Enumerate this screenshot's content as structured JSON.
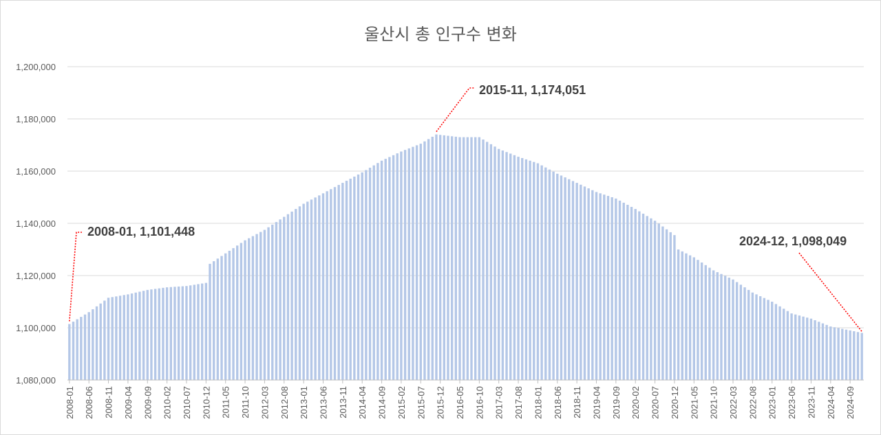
{
  "chart_data": {
    "type": "bar",
    "title": "울산시 총 인구수 변화",
    "xlabel": "",
    "ylabel": "",
    "ylim": [
      1080000,
      1200000
    ],
    "yticks": [
      "1,080,000",
      "1,100,000",
      "1,120,000",
      "1,140,000",
      "1,160,000",
      "1,180,000",
      "1,200,000"
    ],
    "ytick_values": [
      1080000,
      1100000,
      1120000,
      1140000,
      1160000,
      1180000,
      1200000
    ],
    "start_month": "2008-01",
    "end_month": "2024-12",
    "xtick_labels": [
      "2008-01",
      "2008-06",
      "2008-11",
      "2009-04",
      "2009-09",
      "2010-02",
      "2010-07",
      "2010-12",
      "2011-05",
      "2011-10",
      "2012-03",
      "2012-08",
      "2013-01",
      "2013-06",
      "2013-11",
      "2014-04",
      "2014-09",
      "2015-02",
      "2015-07",
      "2015-12",
      "2016-05",
      "2016-10",
      "2017-03",
      "2017-08",
      "2018-01",
      "2018-06",
      "2018-11",
      "2019-04",
      "2019-09",
      "2020-02",
      "2020-07",
      "2020-12",
      "2021-05",
      "2021-10",
      "2022-03",
      "2022-08",
      "2023-01",
      "2023-06",
      "2023-11",
      "2024-04",
      "2024-09"
    ],
    "anchors": [
      [
        "2008-01",
        1101448
      ],
      [
        "2008-06",
        1106000
      ],
      [
        "2008-11",
        1111500
      ],
      [
        "2009-04",
        1112800
      ],
      [
        "2009-09",
        1114500
      ],
      [
        "2010-02",
        1115500
      ],
      [
        "2010-07",
        1116000
      ],
      [
        "2010-12",
        1117200
      ],
      [
        "2011-01",
        1124500
      ],
      [
        "2011-05",
        1128500
      ],
      [
        "2011-10",
        1133500
      ],
      [
        "2012-03",
        1137500
      ],
      [
        "2012-08",
        1142500
      ],
      [
        "2013-01",
        1147500
      ],
      [
        "2013-06",
        1151500
      ],
      [
        "2013-11",
        1155500
      ],
      [
        "2014-04",
        1159500
      ],
      [
        "2014-09",
        1164000
      ],
      [
        "2015-02",
        1167500
      ],
      [
        "2015-07",
        1170500
      ],
      [
        "2015-11",
        1174051
      ],
      [
        "2016-05",
        1173000
      ],
      [
        "2016-10",
        1173000
      ],
      [
        "2017-03",
        1168500
      ],
      [
        "2017-08",
        1165500
      ],
      [
        "2018-01",
        1163000
      ],
      [
        "2018-06",
        1159000
      ],
      [
        "2018-11",
        1155500
      ],
      [
        "2019-04",
        1152000
      ],
      [
        "2019-09",
        1149500
      ],
      [
        "2020-02",
        1145500
      ],
      [
        "2020-07",
        1141000
      ],
      [
        "2020-12",
        1135500
      ],
      [
        "2021-01",
        1130000
      ],
      [
        "2021-05",
        1127000
      ],
      [
        "2021-10",
        1122000
      ],
      [
        "2022-03",
        1118500
      ],
      [
        "2022-08",
        1113500
      ],
      [
        "2023-01",
        1110000
      ],
      [
        "2023-06",
        1105500
      ],
      [
        "2023-11",
        1103500
      ],
      [
        "2024-04",
        1100500
      ],
      [
        "2024-09",
        1099000
      ],
      [
        "2024-12",
        1098049
      ]
    ],
    "bar_color": "#b4c7e7",
    "grid": true,
    "legend": "none"
  },
  "annotations": {
    "first": "2008-01, 1,101,448",
    "peak": "2015-11, 1,174,051",
    "last": "2024-12, 1,098,049"
  },
  "annotation_color": "#ff0000"
}
